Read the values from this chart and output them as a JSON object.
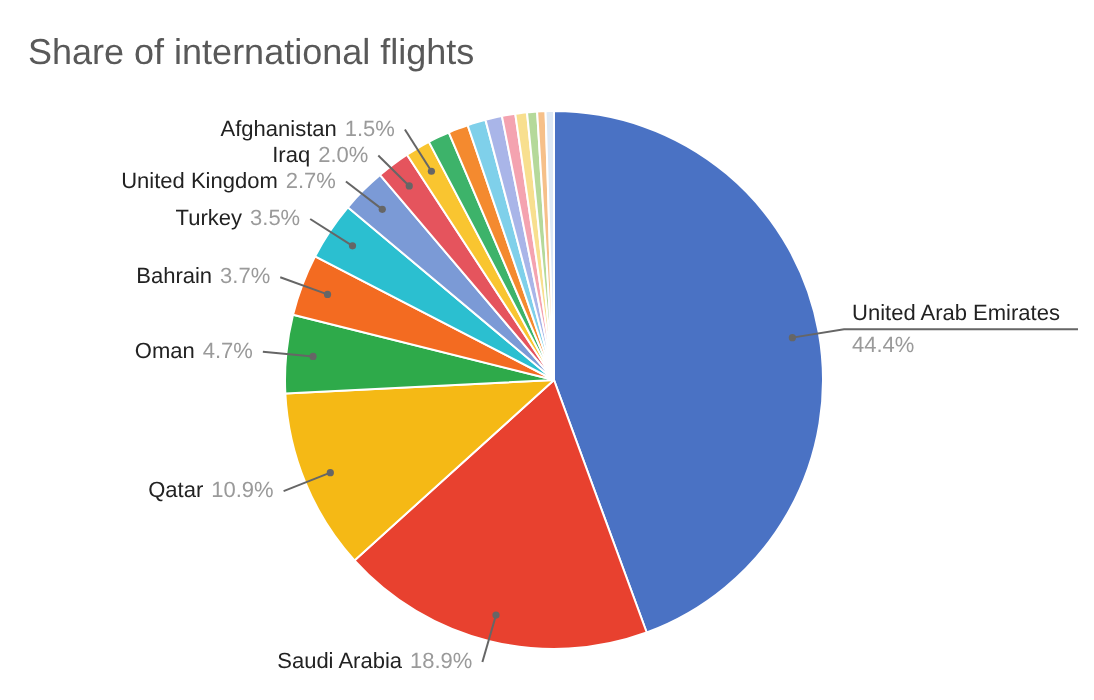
{
  "chart_data": {
    "type": "pie",
    "title": "Share of international flights",
    "categories": [
      "United Arab Emirates",
      "Saudi Arabia",
      "Qatar",
      "Oman",
      "Bahrain",
      "Turkey",
      "United Kingdom",
      "Iraq",
      "Afghanistan",
      null,
      null,
      null,
      null,
      null,
      null,
      null,
      null,
      null
    ],
    "values": [
      44.4,
      18.9,
      10.9,
      4.7,
      3.7,
      3.5,
      2.7,
      2.0,
      1.5,
      1.3,
      1.2,
      1.1,
      1.0,
      0.8,
      0.7,
      0.6,
      0.5,
      0.5
    ],
    "value_labels": [
      "44.4%",
      "18.9%",
      "10.9%",
      "4.7%",
      "3.7%",
      "3.5%",
      "2.7%",
      "2.0%",
      "1.5%",
      null,
      null,
      null,
      null,
      null,
      null,
      null,
      null,
      null
    ],
    "colors": [
      "#4a72c4",
      "#e8412f",
      "#f5b915",
      "#2eaa4a",
      "#f36b21",
      "#2bbfd0",
      "#7b9ad6",
      "#e5545d",
      "#f9c530",
      "#3db36a",
      "#f48a2f",
      "#7fd0ea",
      "#a9b5e8",
      "#f4a3b0",
      "#f8df8f",
      "#b5d99a",
      "#f6c08a",
      "#dde8f5"
    ],
    "legend": false
  }
}
